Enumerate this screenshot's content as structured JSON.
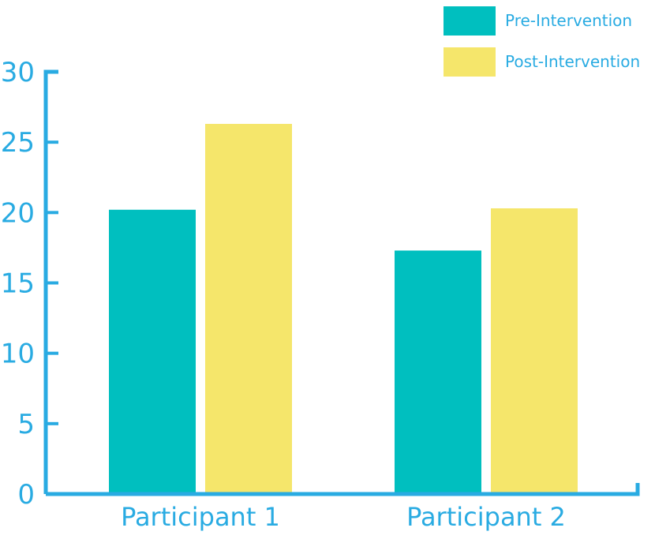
{
  "chart_data": {
    "type": "bar",
    "categories": [
      "Participant 1",
      "Participant 2"
    ],
    "series": [
      {
        "name": "Pre-Intervention",
        "values": [
          20.2,
          17.3
        ],
        "color": "#00bfbf"
      },
      {
        "name": "Post-Intervention",
        "values": [
          26.3,
          20.3
        ],
        "color": "#f5e66b"
      }
    ],
    "title": "",
    "xlabel": "",
    "ylabel": "",
    "ylim": [
      0,
      30
    ],
    "yticks": [
      0,
      5,
      10,
      15,
      20,
      25,
      30
    ],
    "ytick_labels": [
      "0",
      "5",
      "10",
      "15",
      "20",
      "25",
      "30"
    ],
    "grid": false,
    "legend": "top-right",
    "axis_color": "#29abe2",
    "label_color": "#29abe2"
  }
}
